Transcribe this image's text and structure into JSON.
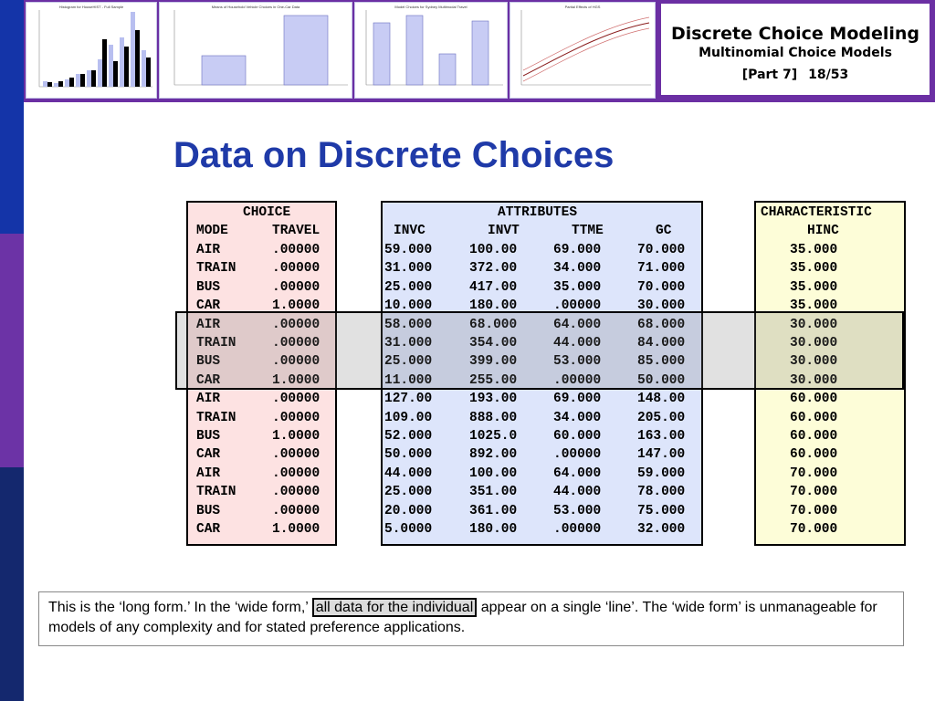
{
  "header": {
    "course_title": "Discrete Choice Modeling",
    "lecture_title": "Multinomial Choice Models",
    "part": "[Part 7]",
    "page": "18/53",
    "thumbnails": [
      {
        "title": "Histogram for HouseHIST - Full Sample"
      },
      {
        "title": "Means of Household Vehicle Choices in One-Car Data"
      },
      {
        "title": "Model Choices for Sydney Multimodal Travel"
      },
      {
        "title": "Partial Effects of HGS"
      }
    ]
  },
  "slide_title": "Data on Discrete Choices",
  "choice_table": {
    "header1": "CHOICE",
    "col_headers": [
      "MODE",
      "TRAVEL"
    ],
    "rows": [
      [
        "AIR",
        ".00000"
      ],
      [
        "TRAIN",
        ".00000"
      ],
      [
        "BUS",
        ".00000"
      ],
      [
        "CAR",
        "1.0000"
      ],
      [
        "AIR",
        ".00000"
      ],
      [
        "TRAIN",
        ".00000"
      ],
      [
        "BUS",
        ".00000"
      ],
      [
        "CAR",
        "1.0000"
      ],
      [
        "AIR",
        ".00000"
      ],
      [
        "TRAIN",
        ".00000"
      ],
      [
        "BUS",
        "1.0000"
      ],
      [
        "CAR",
        ".00000"
      ],
      [
        "AIR",
        ".00000"
      ],
      [
        "TRAIN",
        ".00000"
      ],
      [
        "BUS",
        ".00000"
      ],
      [
        "CAR",
        "1.0000"
      ]
    ]
  },
  "attributes_table": {
    "header1": "ATTRIBUTES",
    "col_headers": [
      "INVC",
      "INVT",
      "TTME",
      "GC"
    ],
    "rows": [
      [
        "59.000",
        "100.00",
        "69.000",
        "70.000"
      ],
      [
        "31.000",
        "372.00",
        "34.000",
        "71.000"
      ],
      [
        "25.000",
        "417.00",
        "35.000",
        "70.000"
      ],
      [
        "10.000",
        "180.00",
        ".00000",
        "30.000"
      ],
      [
        "58.000",
        "68.000",
        "64.000",
        "68.000"
      ],
      [
        "31.000",
        "354.00",
        "44.000",
        "84.000"
      ],
      [
        "25.000",
        "399.00",
        "53.000",
        "85.000"
      ],
      [
        "11.000",
        "255.00",
        ".00000",
        "50.000"
      ],
      [
        "127.00",
        "193.00",
        "69.000",
        "148.00"
      ],
      [
        "109.00",
        "888.00",
        "34.000",
        "205.00"
      ],
      [
        "52.000",
        "1025.0",
        "60.000",
        "163.00"
      ],
      [
        "50.000",
        "892.00",
        ".00000",
        "147.00"
      ],
      [
        "44.000",
        "100.00",
        "64.000",
        "59.000"
      ],
      [
        "25.000",
        "351.00",
        "44.000",
        "78.000"
      ],
      [
        "20.000",
        "361.00",
        "53.000",
        "75.000"
      ],
      [
        "5.0000",
        "180.00",
        ".00000",
        "32.000"
      ]
    ]
  },
  "characteristic_table": {
    "header1": "CHARACTERISTIC",
    "col_header": "HINC",
    "rows": [
      "35.000",
      "35.000",
      "35.000",
      "35.000",
      "30.000",
      "30.000",
      "30.000",
      "30.000",
      "60.000",
      "60.000",
      "60.000",
      "60.000",
      "70.000",
      "70.000",
      "70.000",
      "70.000"
    ]
  },
  "note": {
    "before": "This is the ‘long form.’ In the ‘wide form,’",
    "highlight": "all data for the individual",
    "after": "appear on a single ‘line’.  The ‘wide form’ is unmanageable for models of any complexity and for stated preference applications."
  },
  "colors": {
    "title_blue": "#1f3aa8",
    "header_purple": "#6b2fa3",
    "choice_bg": "#fde2e2",
    "attributes_bg": "#dde5fb",
    "characteristic_bg": "#fdfdd8"
  }
}
